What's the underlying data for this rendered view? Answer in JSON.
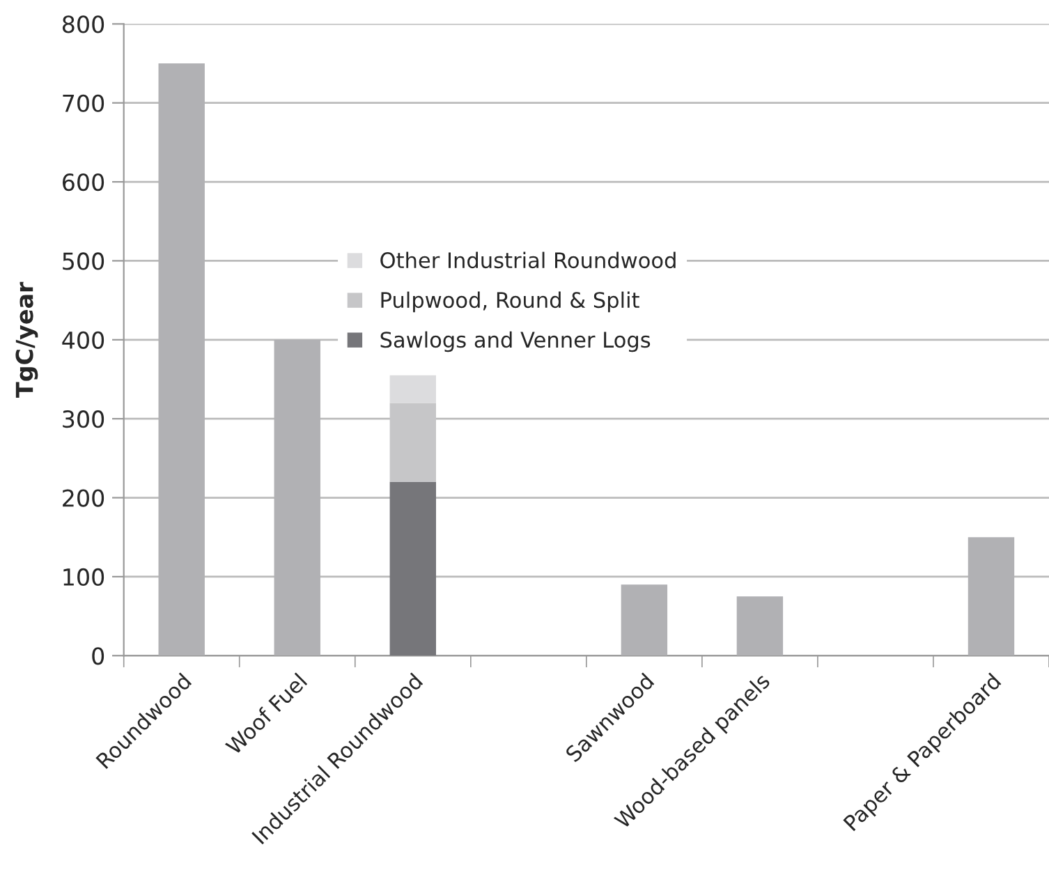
{
  "chart_data": {
    "type": "bar",
    "ylabel": "TgC/year",
    "stacked": true,
    "categories": [
      "Roundwood",
      "Woof Fuel",
      "Industrial Roundwood",
      null,
      "Sawnwood",
      "Wood-based panels",
      null,
      "Paper & Paperboard"
    ],
    "series": [
      {
        "color": "#b1b1b4",
        "values": [
          750,
          400,
          null,
          null,
          90,
          75,
          null,
          150
        ]
      },
      {
        "name": "Sawlogs and Venner Logs",
        "color": "#76767a",
        "values": [
          null,
          null,
          220,
          null,
          null,
          null,
          null,
          null
        ]
      },
      {
        "name": "Pulpwood, Round & Split",
        "color": "#c6c6c8",
        "values": [
          null,
          null,
          100,
          null,
          null,
          null,
          null,
          null
        ]
      },
      {
        "name": "Other Industrial Roundwood",
        "color": "#dcdcde",
        "values": [
          null,
          null,
          35,
          null,
          null,
          null,
          null,
          null
        ]
      }
    ],
    "ylim": [
      0,
      800
    ],
    "yticks": [
      0,
      100,
      200,
      300,
      400,
      500,
      600,
      700,
      800
    ],
    "grid": "y",
    "legend": "center"
  }
}
